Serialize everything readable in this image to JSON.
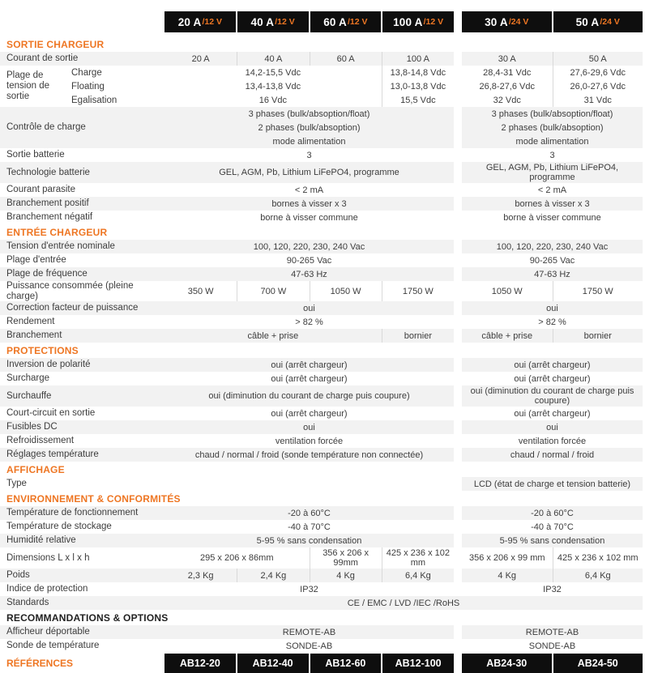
{
  "colors": {
    "accent": "#ee7623",
    "header_bg": "#0e0e0e",
    "stripe": "#f2f2f2",
    "text": "#3d3d3d",
    "divider": "#d9d9d9",
    "header_text": "#ffffff"
  },
  "models": [
    {
      "current": "20 A",
      "voltage": "/12 V",
      "reference": "AB12-20",
      "group": "12"
    },
    {
      "current": "40 A",
      "voltage": "/12 V",
      "reference": "AB12-40",
      "group": "12"
    },
    {
      "current": "60 A",
      "voltage": "/12 V",
      "reference": "AB12-60",
      "group": "12"
    },
    {
      "current": "100 A",
      "voltage": "/12 V",
      "reference": "AB12-100",
      "group": "12"
    },
    {
      "current": "30 A",
      "voltage": "/24 V",
      "reference": "AB24-30",
      "group": "24"
    },
    {
      "current": "50 A",
      "voltage": "/24 V",
      "reference": "AB24-50",
      "group": "24"
    }
  ],
  "references_label": "RÉFÉRENCES",
  "sections": [
    {
      "title": "SORTIE CHARGEUR",
      "rows": [
        {
          "label": "Courant de sortie",
          "cells": [
            {
              "c": [
                1,
                1
              ],
              "t": "20 A"
            },
            {
              "c": [
                2,
                2
              ],
              "t": "40 A"
            },
            {
              "c": [
                3,
                3
              ],
              "t": "60 A"
            },
            {
              "c": [
                4,
                4
              ],
              "t": "100 A"
            },
            {
              "c": [
                5,
                5
              ],
              "t": "30 A"
            },
            {
              "c": [
                6,
                6
              ],
              "t": "50 A"
            }
          ]
        },
        {
          "label": "Plage de tension de sortie",
          "sublines": [
            {
              "sub": "Charge",
              "cells": [
                {
                  "c": [
                    1,
                    3
                  ],
                  "t": "14,2-15,5 Vdc"
                },
                {
                  "c": [
                    4,
                    4
                  ],
                  "t": "13,8-14,8 Vdc"
                },
                {
                  "c": [
                    5,
                    5
                  ],
                  "t": "28,4-31 Vdc"
                },
                {
                  "c": [
                    6,
                    6
                  ],
                  "t": "27,6-29,6 Vdc"
                }
              ]
            },
            {
              "sub": "Floating",
              "cells": [
                {
                  "c": [
                    1,
                    3
                  ],
                  "t": "13,4-13,8 Vdc"
                },
                {
                  "c": [
                    4,
                    4
                  ],
                  "t": "13,0-13,8 Vdc"
                },
                {
                  "c": [
                    5,
                    5
                  ],
                  "t": "26,8-27,6 Vdc"
                },
                {
                  "c": [
                    6,
                    6
                  ],
                  "t": "26,0-27,6 Vdc"
                }
              ]
            },
            {
              "sub": "Egalisation",
              "cells": [
                {
                  "c": [
                    1,
                    3
                  ],
                  "t": "16 Vdc"
                },
                {
                  "c": [
                    4,
                    4
                  ],
                  "t": "15,5 Vdc"
                },
                {
                  "c": [
                    5,
                    5
                  ],
                  "t": "32 Vdc"
                },
                {
                  "c": [
                    6,
                    6
                  ],
                  "t": "31 Vdc"
                }
              ]
            }
          ]
        },
        {
          "label": "Contrôle de charge",
          "sublines": [
            {
              "cells": [
                {
                  "c": [
                    1,
                    4
                  ],
                  "t": "3 phases (bulk/absoption/float)"
                },
                {
                  "c": [
                    5,
                    6
                  ],
                  "t": "3 phases (bulk/absoption/float)"
                }
              ]
            },
            {
              "cells": [
                {
                  "c": [
                    1,
                    4
                  ],
                  "t": "2 phases (bulk/absoption)"
                },
                {
                  "c": [
                    5,
                    6
                  ],
                  "t": "2 phases (bulk/absoption)"
                }
              ]
            },
            {
              "cells": [
                {
                  "c": [
                    1,
                    4
                  ],
                  "t": "mode alimentation"
                },
                {
                  "c": [
                    5,
                    6
                  ],
                  "t": "mode alimentation"
                }
              ]
            }
          ]
        },
        {
          "label": "Sortie batterie",
          "cells": [
            {
              "c": [
                1,
                4
              ],
              "t": "3"
            },
            {
              "c": [
                5,
                6
              ],
              "t": "3"
            }
          ]
        },
        {
          "label": "Technologie batterie",
          "cells": [
            {
              "c": [
                1,
                4
              ],
              "t": "GEL, AGM, Pb, Lithium LiFePO4, programme"
            },
            {
              "c": [
                5,
                6
              ],
              "t": "GEL, AGM, Pb, Lithium LiFePO4, programme"
            }
          ]
        },
        {
          "label": "Courant parasite",
          "cells": [
            {
              "c": [
                1,
                4
              ],
              "t": "< 2 mA"
            },
            {
              "c": [
                5,
                6
              ],
              "t": "< 2 mA"
            }
          ]
        },
        {
          "label": "Branchement positif",
          "cells": [
            {
              "c": [
                1,
                4
              ],
              "t": "bornes à visser x 3"
            },
            {
              "c": [
                5,
                6
              ],
              "t": "bornes à visser x 3"
            }
          ]
        },
        {
          "label": "Branchement négatif",
          "cells": [
            {
              "c": [
                1,
                4
              ],
              "t": "borne à visser commune"
            },
            {
              "c": [
                5,
                6
              ],
              "t": "borne à visser commune"
            }
          ]
        }
      ]
    },
    {
      "title": "ENTRÉE CHARGEUR",
      "rows": [
        {
          "label": "Tension d'entrée nominale",
          "cells": [
            {
              "c": [
                1,
                4
              ],
              "t": "100, 120, 220, 230, 240 Vac"
            },
            {
              "c": [
                5,
                6
              ],
              "t": "100, 120, 220, 230, 240 Vac"
            }
          ]
        },
        {
          "label": "Plage d'entrée",
          "cells": [
            {
              "c": [
                1,
                4
              ],
              "t": "90-265 Vac"
            },
            {
              "c": [
                5,
                6
              ],
              "t": "90-265 Vac"
            }
          ]
        },
        {
          "label": "Plage de fréquence",
          "cells": [
            {
              "c": [
                1,
                4
              ],
              "t": "47-63 Hz"
            },
            {
              "c": [
                5,
                6
              ],
              "t": "47-63 Hz"
            }
          ]
        },
        {
          "label": "Puissance consommée (pleine charge)",
          "cells": [
            {
              "c": [
                1,
                1
              ],
              "t": "350 W"
            },
            {
              "c": [
                2,
                2
              ],
              "t": "700 W"
            },
            {
              "c": [
                3,
                3
              ],
              "t": "1050 W"
            },
            {
              "c": [
                4,
                4
              ],
              "t": "1750 W"
            },
            {
              "c": [
                5,
                5
              ],
              "t": "1050 W"
            },
            {
              "c": [
                6,
                6
              ],
              "t": "1750 W"
            }
          ]
        },
        {
          "label": "Correction facteur de puissance",
          "cells": [
            {
              "c": [
                1,
                4
              ],
              "t": "oui"
            },
            {
              "c": [
                5,
                6
              ],
              "t": "oui"
            }
          ]
        },
        {
          "label": "Rendement",
          "cells": [
            {
              "c": [
                1,
                4
              ],
              "t": "> 82 %"
            },
            {
              "c": [
                5,
                6
              ],
              "t": "> 82 %"
            }
          ]
        },
        {
          "label": "Branchement",
          "cells": [
            {
              "c": [
                1,
                3
              ],
              "t": "câble + prise"
            },
            {
              "c": [
                4,
                4
              ],
              "t": "bornier"
            },
            {
              "c": [
                5,
                5
              ],
              "t": "câble + prise"
            },
            {
              "c": [
                6,
                6
              ],
              "t": "bornier"
            }
          ]
        }
      ]
    },
    {
      "title": "PROTECTIONS",
      "rows": [
        {
          "label": "Inversion de polarité",
          "cells": [
            {
              "c": [
                1,
                4
              ],
              "t": "oui (arrêt chargeur)"
            },
            {
              "c": [
                5,
                6
              ],
              "t": "oui (arrêt chargeur)"
            }
          ]
        },
        {
          "label": "Surcharge",
          "cells": [
            {
              "c": [
                1,
                4
              ],
              "t": "oui (arrêt chargeur)"
            },
            {
              "c": [
                5,
                6
              ],
              "t": "oui (arrêt chargeur)"
            }
          ]
        },
        {
          "label": "Surchauffe",
          "cells": [
            {
              "c": [
                1,
                4
              ],
              "t": "oui (diminution du courant de charge puis coupure)"
            },
            {
              "c": [
                5,
                6
              ],
              "t": "oui (diminution du courant de charge puis coupure)"
            }
          ]
        },
        {
          "label": "Court-circuit en sortie",
          "cells": [
            {
              "c": [
                1,
                4
              ],
              "t": "oui (arrêt chargeur)"
            },
            {
              "c": [
                5,
                6
              ],
              "t": "oui (arrêt chargeur)"
            }
          ]
        },
        {
          "label": "Fusibles DC",
          "cells": [
            {
              "c": [
                1,
                4
              ],
              "t": "oui"
            },
            {
              "c": [
                5,
                6
              ],
              "t": "oui"
            }
          ]
        },
        {
          "label": "Refroidissement",
          "cells": [
            {
              "c": [
                1,
                4
              ],
              "t": "ventilation forcée"
            },
            {
              "c": [
                5,
                6
              ],
              "t": "ventilation forcée"
            }
          ]
        },
        {
          "label": "Réglages température",
          "cells": [
            {
              "c": [
                1,
                4
              ],
              "t": "chaud / normal / froid (sonde température non connectée)"
            },
            {
              "c": [
                5,
                6
              ],
              "t": "chaud / normal / froid"
            }
          ]
        }
      ]
    },
    {
      "title": "AFFICHAGE",
      "rows": [
        {
          "label": "Type",
          "stripe_groups": [
            "24"
          ],
          "cells": [
            {
              "c": [
                5,
                6
              ],
              "t": "LCD (état de charge et tension batterie)"
            }
          ]
        }
      ]
    },
    {
      "title": "ENVIRONNEMENT & CONFORMITÉS",
      "rows": [
        {
          "label": "Température de fonctionnement",
          "cells": [
            {
              "c": [
                1,
                4
              ],
              "t": "-20 à 60°C"
            },
            {
              "c": [
                5,
                6
              ],
              "t": "-20 à 60°C"
            }
          ]
        },
        {
          "label": "Température de stockage",
          "cells": [
            {
              "c": [
                1,
                4
              ],
              "t": "-40 à 70°C"
            },
            {
              "c": [
                5,
                6
              ],
              "t": "-40 à 70°C"
            }
          ]
        },
        {
          "label": "Humidité relative",
          "cells": [
            {
              "c": [
                1,
                4
              ],
              "t": "5-95 % sans condensation"
            },
            {
              "c": [
                5,
                6
              ],
              "t": "5-95 % sans condensation"
            }
          ]
        },
        {
          "label": "Dimensions L x l x h",
          "cells": [
            {
              "c": [
                1,
                2
              ],
              "t": "295 x 206 x 86mm"
            },
            {
              "c": [
                3,
                3
              ],
              "t": "356 x 206 x 99mm"
            },
            {
              "c": [
                4,
                4
              ],
              "t": "425 x 236 x 102 mm"
            },
            {
              "c": [
                5,
                5
              ],
              "t": "356 x 206 x 99 mm"
            },
            {
              "c": [
                6,
                6
              ],
              "t": "425 x 236 x 102 mm"
            }
          ]
        },
        {
          "label": "Poids",
          "cells": [
            {
              "c": [
                1,
                1
              ],
              "t": "2,3 Kg"
            },
            {
              "c": [
                2,
                2
              ],
              "t": "2,4 Kg"
            },
            {
              "c": [
                3,
                3
              ],
              "t": "4 Kg"
            },
            {
              "c": [
                4,
                4
              ],
              "t": "6,4 Kg"
            },
            {
              "c": [
                5,
                5
              ],
              "t": "4 Kg"
            },
            {
              "c": [
                6,
                6
              ],
              "t": "6,4 Kg"
            }
          ]
        },
        {
          "label": "Indice de protection",
          "cells": [
            {
              "c": [
                1,
                4
              ],
              "t": "IP32"
            },
            {
              "c": [
                5,
                6
              ],
              "t": "IP32"
            }
          ]
        },
        {
          "label": "Standards",
          "full": "CE / EMC / LVD /IEC /RoHS"
        }
      ]
    },
    {
      "title": "RECOMMANDATIONS & OPTIONS",
      "dark": true,
      "rows": [
        {
          "label": "Afficheur déportable",
          "cells": [
            {
              "c": [
                1,
                4
              ],
              "t": "REMOTE-AB"
            },
            {
              "c": [
                5,
                6
              ],
              "t": "REMOTE-AB"
            }
          ]
        },
        {
          "label": "Sonde de température",
          "cells": [
            {
              "c": [
                1,
                4
              ],
              "t": "SONDE-AB"
            },
            {
              "c": [
                5,
                6
              ],
              "t": "SONDE-AB"
            }
          ]
        }
      ]
    }
  ]
}
